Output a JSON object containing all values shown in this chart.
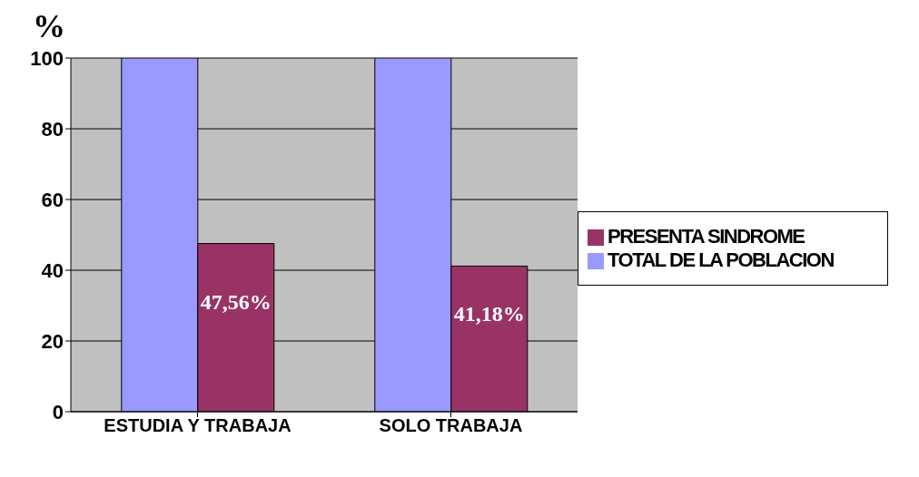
{
  "chart_data": {
    "type": "bar",
    "ylabel": "%",
    "categories": [
      "ESTUDIA Y TRABAJA",
      "SOLO TRABAJA"
    ],
    "series": [
      {
        "name": "TOTAL DE LA POBLACION",
        "color": "#9999ff",
        "values": [
          100,
          100
        ]
      },
      {
        "name": "PRESENTA SINDROME",
        "color": "#993366",
        "values": [
          47.56,
          41.18
        ],
        "value_labels": [
          "47,56%",
          "41,18%"
        ]
      }
    ],
    "ylim": [
      0,
      100
    ],
    "yticks": [
      0,
      20,
      40,
      60,
      80,
      100
    ],
    "grid": "y",
    "legend": "right"
  }
}
